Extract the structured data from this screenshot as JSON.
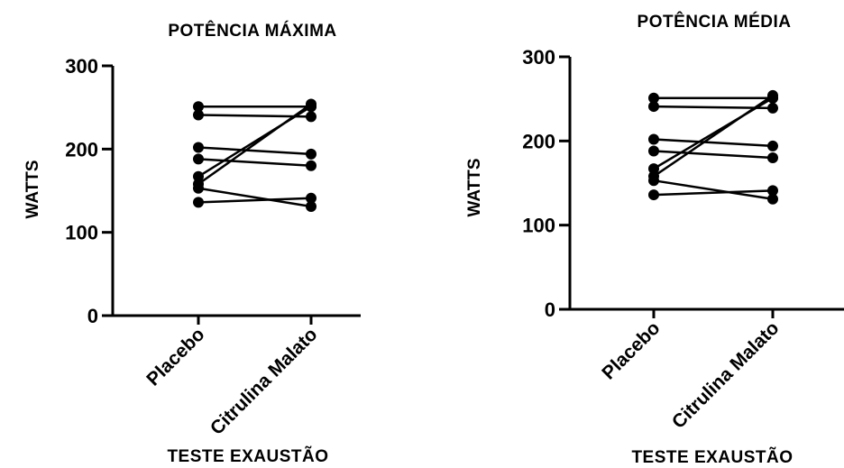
{
  "chart_data": [
    {
      "type": "line",
      "title": "POTÊNCIA MÁXIMA",
      "xlabel": "TESTE EXAUSTÃO",
      "ylabel": "WATTS",
      "categories": [
        "Placebo",
        "Citrulina Malato"
      ],
      "yticks": [
        "0",
        "100",
        "200",
        "300"
      ],
      "ylim": [
        0,
        300
      ],
      "grid": false,
      "series": [
        {
          "values": [
            251,
            251
          ]
        },
        {
          "values": [
            241,
            239
          ]
        },
        {
          "values": [
            202,
            194
          ]
        },
        {
          "values": [
            188,
            180
          ]
        },
        {
          "values": [
            167,
            251
          ]
        },
        {
          "values": [
            158,
            254
          ]
        },
        {
          "values": [
            153,
            131
          ]
        },
        {
          "values": [
            136,
            141
          ]
        }
      ]
    },
    {
      "type": "line",
      "title": "POTÊNCIA MÉDIA",
      "xlabel": "TESTE EXAUSTÃO",
      "ylabel": "WATTS",
      "categories": [
        "Placebo",
        "Citrulina Malato"
      ],
      "yticks": [
        "0",
        "100",
        "200",
        "300"
      ],
      "ylim": [
        0,
        300
      ],
      "grid": false,
      "series": [
        {
          "values": [
            251,
            251
          ]
        },
        {
          "values": [
            241,
            239
          ]
        },
        {
          "values": [
            202,
            194
          ]
        },
        {
          "values": [
            188,
            180
          ]
        },
        {
          "values": [
            167,
            251
          ]
        },
        {
          "values": [
            158,
            254
          ]
        },
        {
          "values": [
            153,
            131
          ]
        },
        {
          "values": [
            136,
            141
          ]
        }
      ]
    }
  ]
}
